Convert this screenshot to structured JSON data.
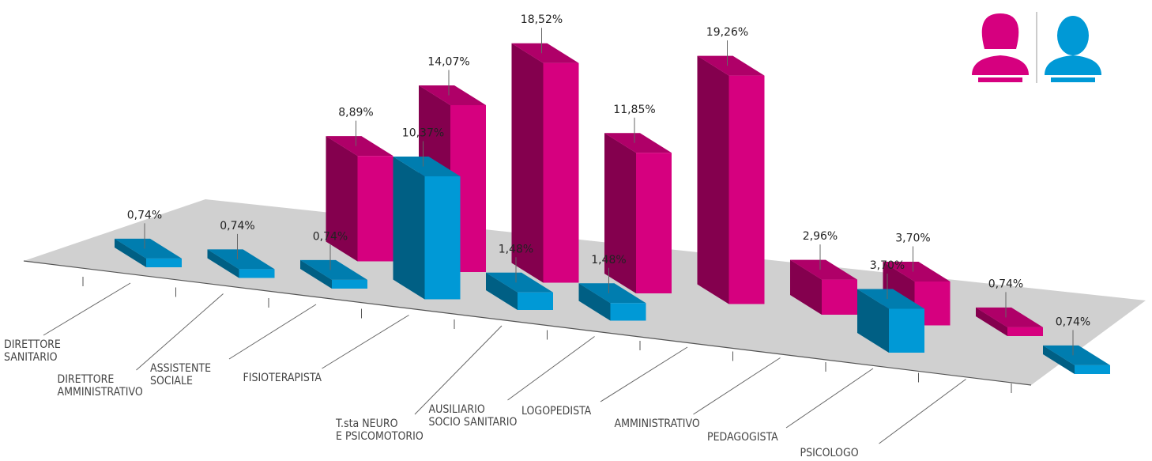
{
  "chart_data": {
    "type": "bar3d",
    "categories": [
      "DIRETTORE\nSANITARIO",
      "DIRETTORE\nAMMINISTRATIVO",
      "ASSISTENTE\nSOCIALE",
      "FISIOTERAPISTA",
      "T.sta NEURO\nE PSICOMOTORIO",
      "AUSILIARIO\nSOCIO SANITARIO",
      "LOGOPEDISTA",
      "AMMINISTRATIVO",
      "PEDAGOGISTA",
      "PSICOLOGO",
      null
    ],
    "series": [
      {
        "color": "#d6007f",
        "values": [
          null,
          null,
          null,
          8.89,
          14.07,
          18.52,
          11.85,
          19.26,
          2.96,
          3.7,
          0.74
        ],
        "value_labels": [
          null,
          null,
          null,
          "8,89%",
          "14,07%",
          "18,52%",
          "11,85%",
          "19,26%",
          "2,96%",
          "3,70%",
          "0,74%"
        ]
      },
      {
        "color": "#0099d6",
        "values": [
          0.74,
          0.74,
          0.74,
          10.37,
          1.48,
          1.48,
          null,
          null,
          3.7,
          null,
          0.74
        ],
        "value_labels": [
          "0,74%",
          "0,74%",
          "0,74%",
          "10,37%",
          "1,48%",
          "1,48%",
          null,
          null,
          "3,70%",
          null,
          "0,74%"
        ]
      }
    ]
  }
}
